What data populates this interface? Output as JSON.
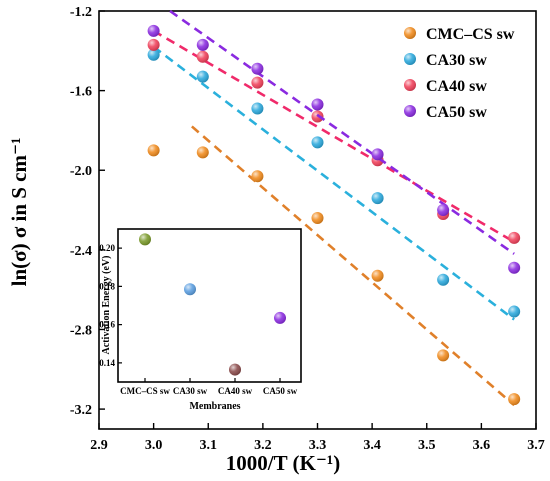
{
  "chart_data": [
    {
      "type": "scatter",
      "title": "",
      "xlabel": "1000/T (K⁻¹)",
      "ylabel": "ln(σ) σ in S cm⁻¹",
      "xlim": [
        2.9,
        3.7
      ],
      "ylim": [
        -3.3,
        -1.2
      ],
      "xticks": [
        "2.9",
        "3.0",
        "3.1",
        "3.2",
        "3.3",
        "3.4",
        "3.5",
        "3.6",
        "3.7"
      ],
      "yticks": [
        "-1.2",
        "-1.6",
        "-2.0",
        "-2.4",
        "-2.8",
        "-3.2"
      ],
      "grid": false,
      "legend_position": "top-right",
      "series": [
        {
          "name": "CMC–CS sw",
          "color": "#f08a1c",
          "fit_color": "#e0802a",
          "x": [
            3.0,
            3.09,
            3.19,
            3.3,
            3.41,
            3.53,
            3.66
          ],
          "y": [
            -1.9,
            -1.91,
            -2.03,
            -2.24,
            -2.53,
            -2.93,
            -3.15
          ],
          "fit": [
            [
              3.07,
              -1.78
            ],
            [
              3.66,
              -3.18
            ]
          ]
        },
        {
          "name": "CA30 sw",
          "color": "#2aa8dc",
          "fit_color": "#2ab0dc",
          "x": [
            3.0,
            3.09,
            3.19,
            3.3,
            3.41,
            3.53,
            3.66
          ],
          "y": [
            -1.42,
            -1.53,
            -1.69,
            -1.86,
            -2.14,
            -2.55,
            -2.71
          ],
          "fit": [
            [
              3.0,
              -1.38
            ],
            [
              3.66,
              -2.75
            ]
          ]
        },
        {
          "name": "CA40 sw",
          "color": "#f0405a",
          "fit_color": "#f02a6a",
          "x": [
            3.0,
            3.09,
            3.19,
            3.3,
            3.41,
            3.53,
            3.66
          ],
          "y": [
            -1.37,
            -1.43,
            -1.56,
            -1.73,
            -1.95,
            -2.22,
            -2.34
          ],
          "fit": [
            [
              3.0,
              -1.3
            ],
            [
              3.66,
              -2.36
            ]
          ]
        },
        {
          "name": "CA50 sw",
          "color": "#8a2ae0",
          "fit_color": "#8a2ae0",
          "x": [
            3.0,
            3.09,
            3.19,
            3.3,
            3.41,
            3.53,
            3.66
          ],
          "y": [
            -1.3,
            -1.37,
            -1.49,
            -1.67,
            -1.92,
            -2.2,
            -2.49
          ],
          "fit": [
            [
              3.03,
              -1.2
            ],
            [
              3.66,
              -2.42
            ]
          ]
        }
      ]
    },
    {
      "type": "scatter",
      "title": "",
      "xlabel": "Membranes",
      "ylabel": "Activation Energy (eV)",
      "ylim": [
        0.13,
        0.21
      ],
      "yticks": [
        "0.20",
        "0.18",
        "0.16",
        "0.14"
      ],
      "categories": [
        "CMC–CS sw",
        "CA30 sw",
        "CA40 sw",
        "CA50 sw"
      ],
      "values": [
        0.2046,
        0.1785,
        0.1365,
        0.1635
      ],
      "colors": [
        "#7a9a2a",
        "#5b9ee0",
        "#8a4a4a",
        "#8a2ae0"
      ]
    }
  ]
}
